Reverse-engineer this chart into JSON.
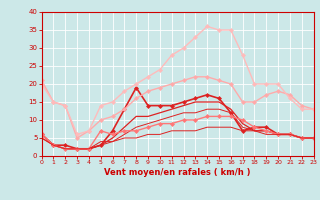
{
  "xlabel": "Vent moyen/en rafales ( km/h )",
  "x": [
    0,
    1,
    2,
    3,
    4,
    5,
    6,
    7,
    8,
    9,
    10,
    11,
    12,
    13,
    14,
    15,
    16,
    17,
    18,
    19,
    20,
    21,
    22,
    23
  ],
  "lines": [
    {
      "y": [
        6,
        3,
        3,
        2,
        2,
        3,
        7,
        13,
        19,
        14,
        14,
        14,
        15,
        16,
        17,
        16,
        12,
        7,
        8,
        8,
        6,
        6,
        5,
        5
      ],
      "color": "#dd2222",
      "lw": 1.2,
      "marker": "D",
      "ms": 2.0
    },
    {
      "y": [
        6,
        3,
        2,
        2,
        2,
        3,
        5,
        8,
        11,
        11,
        12,
        13,
        14,
        15,
        15,
        15,
        13,
        9,
        7,
        7,
        6,
        6,
        5,
        5
      ],
      "color": "#dd2222",
      "lw": 0.9,
      "marker": null,
      "ms": 0
    },
    {
      "y": [
        5,
        3,
        2,
        2,
        2,
        3,
        4,
        6,
        8,
        9,
        10,
        11,
        12,
        12,
        13,
        13,
        12,
        8,
        7,
        7,
        6,
        6,
        5,
        5
      ],
      "color": "#dd2222",
      "lw": 0.7,
      "marker": null,
      "ms": 0
    },
    {
      "y": [
        21,
        15,
        14,
        5,
        7,
        10,
        11,
        13,
        16,
        18,
        19,
        20,
        21,
        22,
        22,
        21,
        20,
        15,
        15,
        17,
        18,
        17,
        14,
        13
      ],
      "color": "#ffaaaa",
      "lw": 1.0,
      "marker": "D",
      "ms": 2.0
    },
    {
      "y": [
        6,
        3,
        2,
        2,
        2,
        7,
        6,
        7,
        7,
        8,
        9,
        9,
        10,
        10,
        11,
        11,
        11,
        10,
        8,
        7,
        6,
        6,
        5,
        5
      ],
      "color": "#ff7777",
      "lw": 1.0,
      "marker": "D",
      "ms": 2.0
    },
    {
      "y": [
        20,
        15,
        14,
        6,
        7,
        14,
        15,
        18,
        20,
        22,
        24,
        28,
        30,
        33,
        36,
        35,
        35,
        28,
        20,
        20,
        20,
        16,
        13,
        13
      ],
      "color": "#ffbbbb",
      "lw": 1.0,
      "marker": "D",
      "ms": 2.0
    },
    {
      "y": [
        5,
        3,
        2,
        2,
        2,
        4,
        4,
        5,
        5,
        6,
        6,
        7,
        7,
        7,
        8,
        8,
        8,
        7,
        7,
        6,
        6,
        6,
        5,
        5
      ],
      "color": "#dd2222",
      "lw": 0.7,
      "marker": null,
      "ms": 0
    }
  ],
  "ylim": [
    0,
    40
  ],
  "xlim": [
    0,
    23
  ],
  "yticks": [
    0,
    5,
    10,
    15,
    20,
    25,
    30,
    35,
    40
  ],
  "xticks": [
    0,
    1,
    2,
    3,
    4,
    5,
    6,
    7,
    8,
    9,
    10,
    11,
    12,
    13,
    14,
    15,
    16,
    17,
    18,
    19,
    20,
    21,
    22,
    23
  ],
  "bg_color": "#cce8e8",
  "grid_color": "#ffffff",
  "tick_color": "#cc0000",
  "label_color": "#cc0000"
}
